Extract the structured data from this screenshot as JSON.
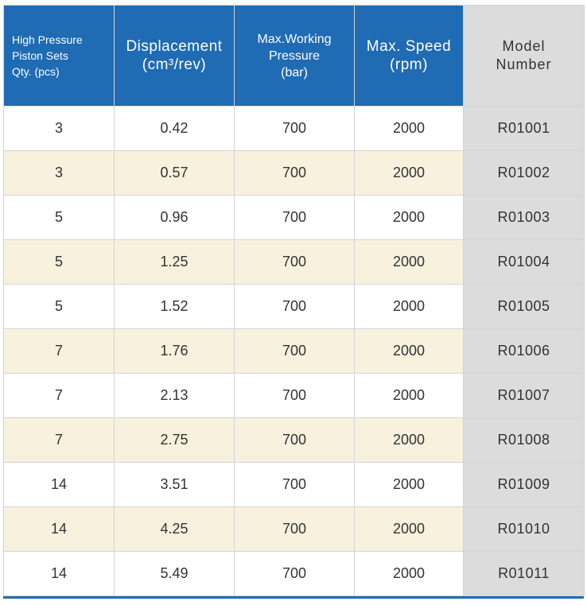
{
  "headers": [
    "High Pressure\nPiston Sets\nQty. (pcs)",
    "Displacement\n(cm³/rev)",
    "Max.Working\nPressure\n(bar)",
    "Max. Speed\n(rpm)",
    "Model\nNumber"
  ],
  "rows": [
    [
      "3",
      "0.42",
      "700",
      "2000",
      "R01001"
    ],
    [
      "3",
      "0.57",
      "700",
      "2000",
      "R01002"
    ],
    [
      "5",
      "0.96",
      "700",
      "2000",
      "R01003"
    ],
    [
      "5",
      "1.25",
      "700",
      "2000",
      "R01004"
    ],
    [
      "5",
      "1.52",
      "700",
      "2000",
      "R01005"
    ],
    [
      "7",
      "1.76",
      "700",
      "2000",
      "R01006"
    ],
    [
      "7",
      "2.13",
      "700",
      "2000",
      "R01007"
    ],
    [
      "7",
      "2.75",
      "700",
      "2000",
      "R01008"
    ],
    [
      "14",
      "3.51",
      "700",
      "2000",
      "R01009"
    ],
    [
      "14",
      "4.25",
      "700",
      "2000",
      "R01010"
    ],
    [
      "14",
      "5.49",
      "700",
      "2000",
      "R01011"
    ]
  ],
  "colors": {
    "header_bg": "#1f6bb4",
    "model_bg": "#dcdcdc",
    "alt_row_bg": "#f7f1de"
  }
}
